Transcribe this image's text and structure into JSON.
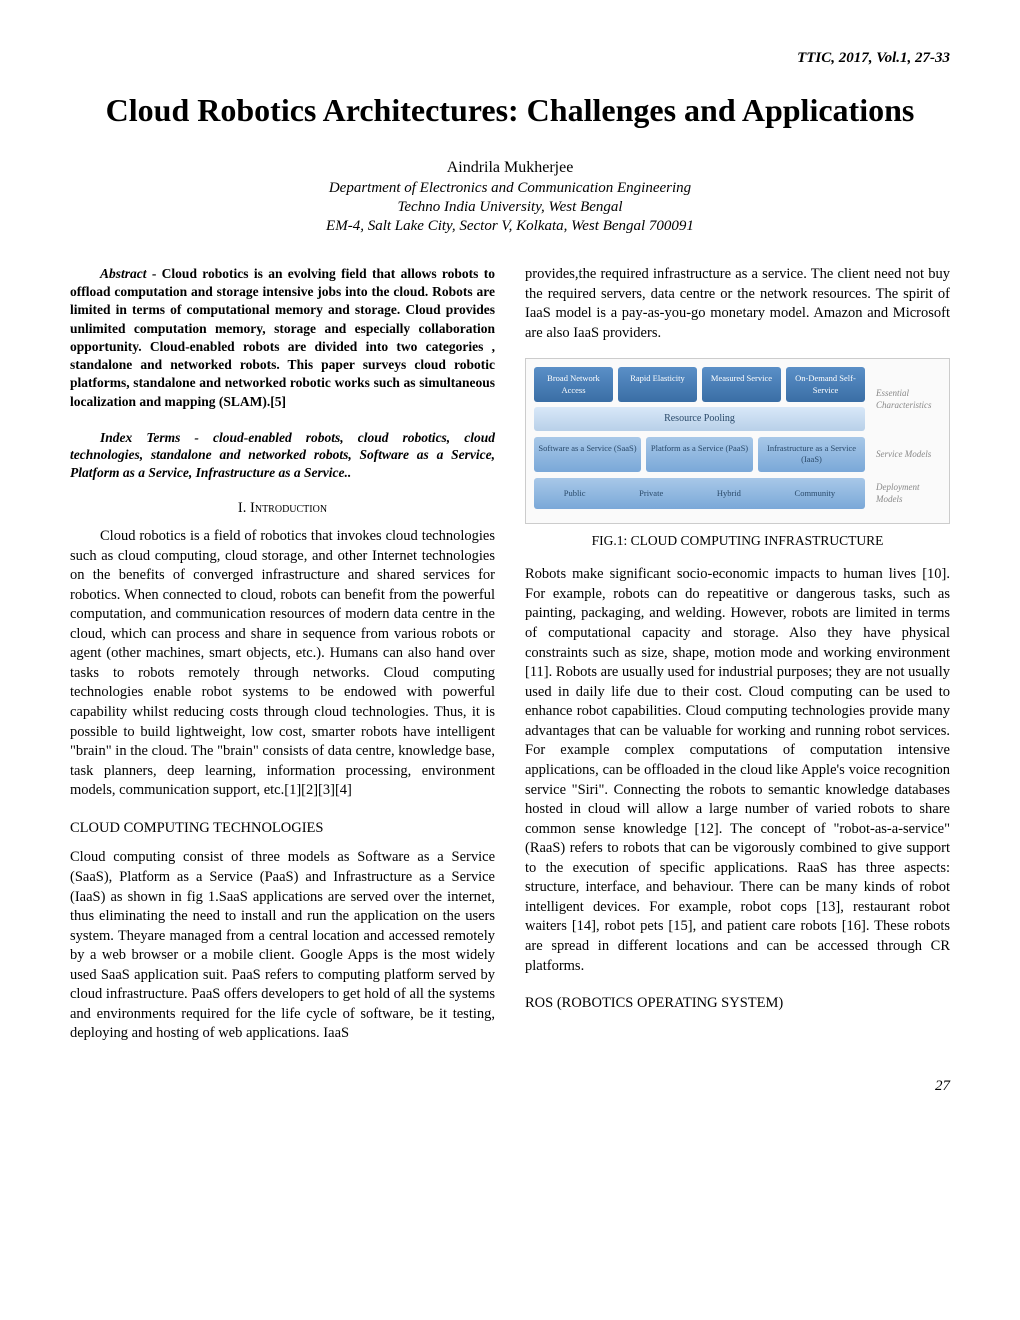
{
  "header": {
    "citation": "TTIC, 2017, Vol.1, 27-33"
  },
  "title": "Cloud Robotics Architectures: Challenges and Applications",
  "author": "Aindrila Mukherjee",
  "affiliation": {
    "dept": "Department of Electronics and Communication Engineering",
    "univ": "Techno India University, West Bengal",
    "addr": "EM-4, Salt Lake City, Sector V, Kolkata, West Bengal 700091"
  },
  "abstract": {
    "label": "Abstract",
    "text": " - Cloud robotics is an evolving field that allows robots to offload computation and storage intensive jobs into the cloud. Robots are limited in terms of computational memory and storage. Cloud provides unlimited computation memory, storage and especially collaboration opportunity. Cloud-enabled robots are divided into two categories , standalone and networked robots. This paper surveys cloud robotic platforms, standalone and networked robotic works such as simultaneous localization and mapping (SLAM).[5]"
  },
  "indexTerms": {
    "label": "Index Terms",
    "text": " - cloud-enabled robots, cloud robotics, cloud technologies, standalone and networked robots, Software as a Service, Platform as a Service, Infrastructure as a Service.."
  },
  "sections": {
    "intro": {
      "heading": "I. INTRODUCTION",
      "para1": "Cloud robotics is a field of robotics that invokes cloud technologies such as cloud computing, cloud storage, and other Internet technologies on the benefits of converged infrastructure and shared services for robotics. When connected to cloud, robots can benefit from the powerful computation, and communication resources of modern data centre in the cloud, which can process and share in sequence from various robots or agent (other machines, smart objects, etc.). Humans can also hand over tasks to robots remotely through networks. Cloud computing technologies enable robot systems to be endowed with powerful capability whilst reducing costs through cloud technologies. Thus, it is possible to build lightweight, low cost, smarter robots have intelligent \"brain\" in the cloud. The \"brain\" consists of data centre, knowledge base, task planners, deep learning, information processing, environment models, communication support, etc.[1][2][3][4]"
    },
    "cloudComputing": {
      "heading": "CLOUD COMPUTING TECHNOLOGIES",
      "para1": "Cloud computing consist of three models as Software as a Service (SaaS), Platform as a Service (PaaS) and Infrastructure as a Service (IaaS) as shown in fig 1.SaaS applications are served over the internet, thus eliminating the need to install and run the application on the users system. Theyare managed from a central location and accessed remotely by a web browser or a mobile client. Google Apps is the most widely used SaaS application suit. PaaS refers to computing platform served by cloud infrastructure. PaaS offers developers to get hold of all the systems and environments required for the life cycle of software, be it testing, deploying and hosting of web applications. IaaS"
    },
    "rightCol": {
      "para1": "provides,the required infrastructure as a service. The client need not buy the required servers, data centre or the network resources. The spirit of IaaS model is a pay-as-you-go monetary model. Amazon and Microsoft are also IaaS providers.",
      "para2": "Robots make significant socio-economic impacts to human lives [10]. For example, robots can do repeatitive or dangerous tasks, such as painting, packaging, and welding. However, robots are limited in terms of computational capacity and storage. Also they have physical constraints such as size, shape, motion mode and working environment [11]. Robots are usually used for industrial purposes; they are not usually used in daily life due to their cost. Cloud computing can be used to enhance robot capabilities. Cloud computing technologies provide many advantages that can be valuable for working and running robot services. For example complex computations of computation intensive applications, can be offloaded in the cloud like Apple's voice recognition service \"Siri\". Connecting the robots to semantic knowledge databases hosted in cloud will allow a large number of varied robots to share common sense knowledge [12]. The concept of \"robot-as-a-service\"(RaaS) refers to robots that can be vigorously combined to give support to the execution of specific applications. RaaS has three aspects: structure, interface, and behaviour. There can be many kinds of robot intelligent devices. For example, robot cops [13], restaurant robot waiters [14], robot pets [15], and patient care robots [16]. These robots are spread in different locations and can be accessed through CR platforms."
    },
    "ros": {
      "heading": "ROS (ROBOTICS OPERATING SYSTEM)"
    }
  },
  "figure1": {
    "caption": "FIG.1: CLOUD COMPUTING INFRASTRUCTURE",
    "row1": {
      "boxes": [
        "Broad Network Access",
        "Rapid Elasticity",
        "Measured Service",
        "On-Demand Self-Service"
      ],
      "pooling": "Resource Pooling",
      "label": "Essential Characteristics"
    },
    "row2": {
      "boxes": [
        "Software as a Service (SaaS)",
        "Platform as a Service (PaaS)",
        "Infrastructure as a Service (IaaS)"
      ],
      "label": "Service Models"
    },
    "row3": {
      "clouds": [
        "Public",
        "Private",
        "Hybrid",
        "Community"
      ],
      "label": "Deployment Models"
    },
    "colors": {
      "blue_dark": "#3a6ea5",
      "blue_light": "#a8c8e8",
      "text_gray": "#888888",
      "bg": "#fafafa"
    }
  },
  "pageNumber": "27"
}
